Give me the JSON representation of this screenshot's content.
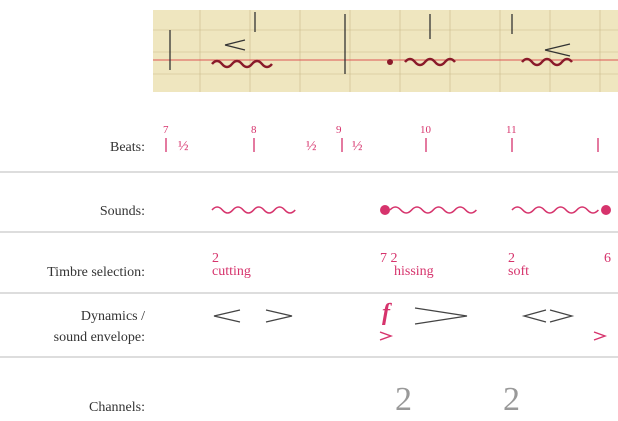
{
  "rows": [
    {
      "label": "Beats:",
      "marks": [
        "7",
        "½",
        "8",
        "½",
        "9",
        "½",
        "10",
        "11"
      ]
    },
    {
      "label": "Sounds:"
    },
    {
      "label": "Timbre selection:",
      "marks": [
        "2",
        "cutting",
        "7 2",
        "hissing",
        "2",
        "soft",
        "6"
      ]
    },
    {
      "label": "Dynamics /",
      "label2": "sound envelope:",
      "marks": [
        "f"
      ]
    },
    {
      "label": "Channels:",
      "marks": [
        "2",
        "2"
      ]
    }
  ]
}
